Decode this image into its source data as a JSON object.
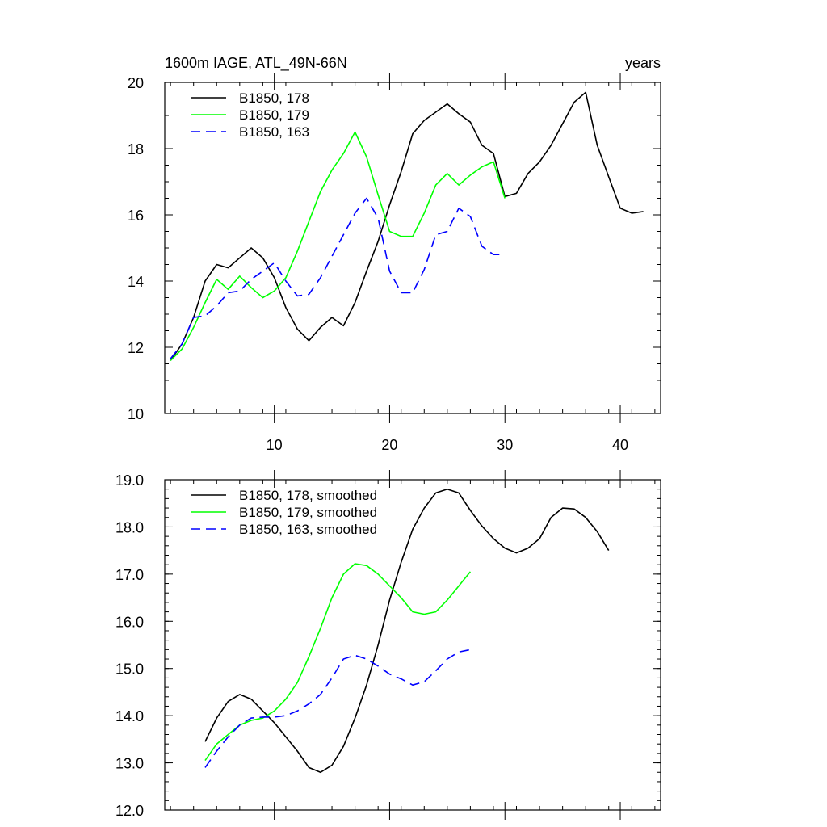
{
  "chart_data": [
    {
      "type": "line",
      "title_left": "1600m IAGE, ATL_49N-66N",
      "title_right": "years",
      "xlabel": "",
      "ylabel": "",
      "xlim": [
        0.5,
        43.5
      ],
      "ylim": [
        10,
        20
      ],
      "x_ticks": [
        10,
        20,
        30,
        40
      ],
      "x_tick_labels": [
        "10",
        "20",
        "30",
        "40"
      ],
      "y_ticks": [
        10,
        12,
        14,
        16,
        18,
        20
      ],
      "y_tick_labels": [
        "10",
        "12",
        "14",
        "16",
        "18",
        "20"
      ],
      "x_minor_step": 2,
      "y_minor_step": 0.5,
      "legend_position": "top-left",
      "series": [
        {
          "name": "B1850, 178",
          "color": "#000000",
          "dash": "solid",
          "x": [
            1,
            2,
            3,
            4,
            5,
            6,
            7,
            8,
            9,
            10,
            11,
            12,
            13,
            14,
            15,
            16,
            17,
            18,
            19,
            20,
            21,
            22,
            23,
            24,
            25,
            26,
            27,
            28,
            29,
            30,
            31,
            32,
            33,
            34,
            35,
            36,
            37,
            38,
            39,
            40,
            41,
            42
          ],
          "values": [
            11.6,
            12.1,
            12.9,
            14.0,
            14.5,
            14.4,
            14.7,
            15.0,
            14.7,
            14.1,
            13.2,
            12.55,
            12.2,
            12.6,
            12.9,
            12.65,
            13.35,
            14.3,
            15.2,
            16.3,
            17.3,
            18.45,
            18.85,
            19.1,
            19.35,
            19.05,
            18.8,
            18.1,
            17.85,
            16.55,
            16.65,
            17.25,
            17.6,
            18.1,
            18.75,
            19.4,
            19.7,
            18.1,
            17.15,
            16.2,
            16.05,
            16.1
          ]
        },
        {
          "name": "B1850, 179",
          "color": "#00ff00",
          "dash": "solid",
          "x": [
            1,
            2,
            3,
            4,
            5,
            6,
            7,
            8,
            9,
            10,
            11,
            12,
            13,
            14,
            15,
            16,
            17,
            18,
            19,
            20,
            21,
            22,
            23,
            24,
            25,
            26,
            27,
            28,
            29,
            30
          ],
          "values": [
            11.6,
            11.95,
            12.6,
            13.35,
            14.05,
            13.75,
            14.15,
            13.8,
            13.5,
            13.7,
            14.1,
            14.9,
            15.8,
            16.7,
            17.35,
            17.85,
            18.5,
            17.75,
            16.6,
            15.5,
            15.35,
            15.35,
            16.05,
            16.9,
            17.25,
            16.9,
            17.2,
            17.45,
            17.6,
            16.5
          ]
        },
        {
          "name": "B1850, 163",
          "color": "#0000ff",
          "dash": "dashed",
          "x": [
            1,
            2,
            3,
            4,
            5,
            6,
            7,
            8,
            9,
            10,
            11,
            12,
            13,
            14,
            15,
            16,
            17,
            18,
            19,
            20,
            21,
            22,
            23,
            24,
            25,
            26,
            27,
            28,
            29,
            30
          ],
          "values": [
            11.65,
            12.1,
            12.9,
            12.95,
            13.25,
            13.65,
            13.7,
            14.05,
            14.3,
            14.55,
            14.0,
            13.55,
            13.6,
            14.1,
            14.75,
            15.4,
            16.05,
            16.5,
            15.9,
            14.3,
            13.65,
            13.65,
            14.35,
            15.4,
            15.5,
            16.2,
            15.95,
            15.05,
            14.8,
            14.8
          ]
        }
      ]
    },
    {
      "type": "line",
      "xlabel": "",
      "ylabel": "",
      "xlim": [
        0.5,
        43.5
      ],
      "ylim": [
        12,
        19
      ],
      "x_ticks": [
        10,
        20,
        30,
        40
      ],
      "x_tick_labels": [],
      "y_ticks": [
        12,
        13,
        14,
        15,
        16,
        17,
        18,
        19
      ],
      "y_tick_labels": [
        "12.0",
        "13.0",
        "14.0",
        "15.0",
        "16.0",
        "17.0",
        "18.0",
        "19.0"
      ],
      "x_minor_step": 2,
      "y_minor_step": 0.2,
      "legend_position": "top-left",
      "series": [
        {
          "name": "B1850, 178, smoothed",
          "color": "#000000",
          "dash": "solid",
          "x": [
            4,
            5,
            6,
            7,
            8,
            9,
            10,
            11,
            12,
            13,
            14,
            15,
            16,
            17,
            18,
            19,
            20,
            21,
            22,
            23,
            24,
            25,
            26,
            27,
            28,
            29,
            30,
            31,
            32,
            33,
            34,
            35,
            36,
            37,
            38,
            39
          ],
          "values": [
            13.45,
            13.95,
            14.3,
            14.45,
            14.35,
            14.1,
            13.85,
            13.55,
            13.25,
            12.9,
            12.8,
            12.95,
            13.35,
            13.95,
            14.65,
            15.5,
            16.45,
            17.25,
            17.95,
            18.4,
            18.72,
            18.8,
            18.72,
            18.35,
            18.02,
            17.75,
            17.55,
            17.45,
            17.55,
            17.75,
            18.2,
            18.4,
            18.38,
            18.2,
            17.9,
            17.5
          ]
        },
        {
          "name": "B1850, 179, smoothed",
          "color": "#00ff00",
          "dash": "solid",
          "x": [
            4,
            5,
            6,
            7,
            8,
            9,
            10,
            11,
            12,
            13,
            14,
            15,
            16,
            17,
            18,
            19,
            20,
            21,
            22,
            23,
            24,
            25,
            26,
            27
          ],
          "values": [
            13.05,
            13.4,
            13.6,
            13.8,
            13.9,
            13.95,
            14.1,
            14.35,
            14.7,
            15.25,
            15.85,
            16.5,
            17.0,
            17.22,
            17.18,
            17.0,
            16.75,
            16.5,
            16.2,
            16.15,
            16.2,
            16.45,
            16.75,
            17.05
          ]
        },
        {
          "name": "B1850, 163, smoothed",
          "color": "#0000ff",
          "dash": "dashed",
          "x": [
            4,
            5,
            6,
            7,
            8,
            9,
            10,
            11,
            12,
            13,
            14,
            15,
            16,
            17,
            18,
            19,
            20,
            21,
            22,
            23,
            24,
            25,
            26,
            27
          ],
          "values": [
            12.9,
            13.25,
            13.55,
            13.8,
            13.95,
            13.97,
            13.97,
            14.0,
            14.1,
            14.25,
            14.45,
            14.8,
            15.2,
            15.28,
            15.2,
            15.05,
            14.88,
            14.78,
            14.65,
            14.72,
            14.95,
            15.2,
            15.35,
            15.4
          ]
        }
      ]
    }
  ]
}
